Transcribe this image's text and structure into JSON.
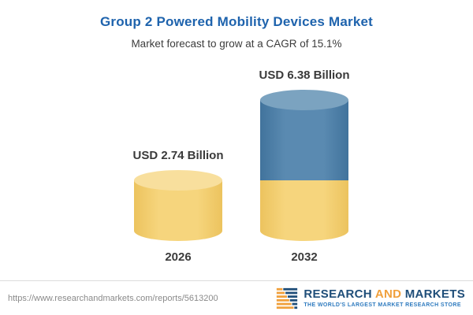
{
  "header": {
    "title": "Group 2 Powered Mobility Devices Market",
    "subtitle": "Market forecast to grow at a CAGR of 15.1%"
  },
  "chart_data": {
    "type": "bar",
    "style": "cylinder-3d",
    "categories": [
      "2026",
      "2032"
    ],
    "values": [
      2.74,
      6.38
    ],
    "value_labels": [
      "USD 2.74 Billion",
      "USD 6.38 Billion"
    ],
    "unit": "USD Billion",
    "cagr_pct": 15.1,
    "ylim": [
      0,
      6.38
    ],
    "grid": false,
    "legend": "none",
    "colors": {
      "gold": "#f6d57d",
      "gold_top": "#f8df9d",
      "blue": "#5a8ab1",
      "blue_top": "#7ba3c0",
      "title": "#1e63ad"
    },
    "stacking_note": "2032 column is gold up to 2.74 then blue up to 6.38"
  },
  "footer": {
    "url": "https://www.researchandmarkets.com/reports/5613200",
    "logo": {
      "word1": "RESEARCH",
      "word2": "AND",
      "word3": "MARKETS",
      "tagline": "THE WORLD'S LARGEST MARKET RESEARCH STORE"
    }
  }
}
